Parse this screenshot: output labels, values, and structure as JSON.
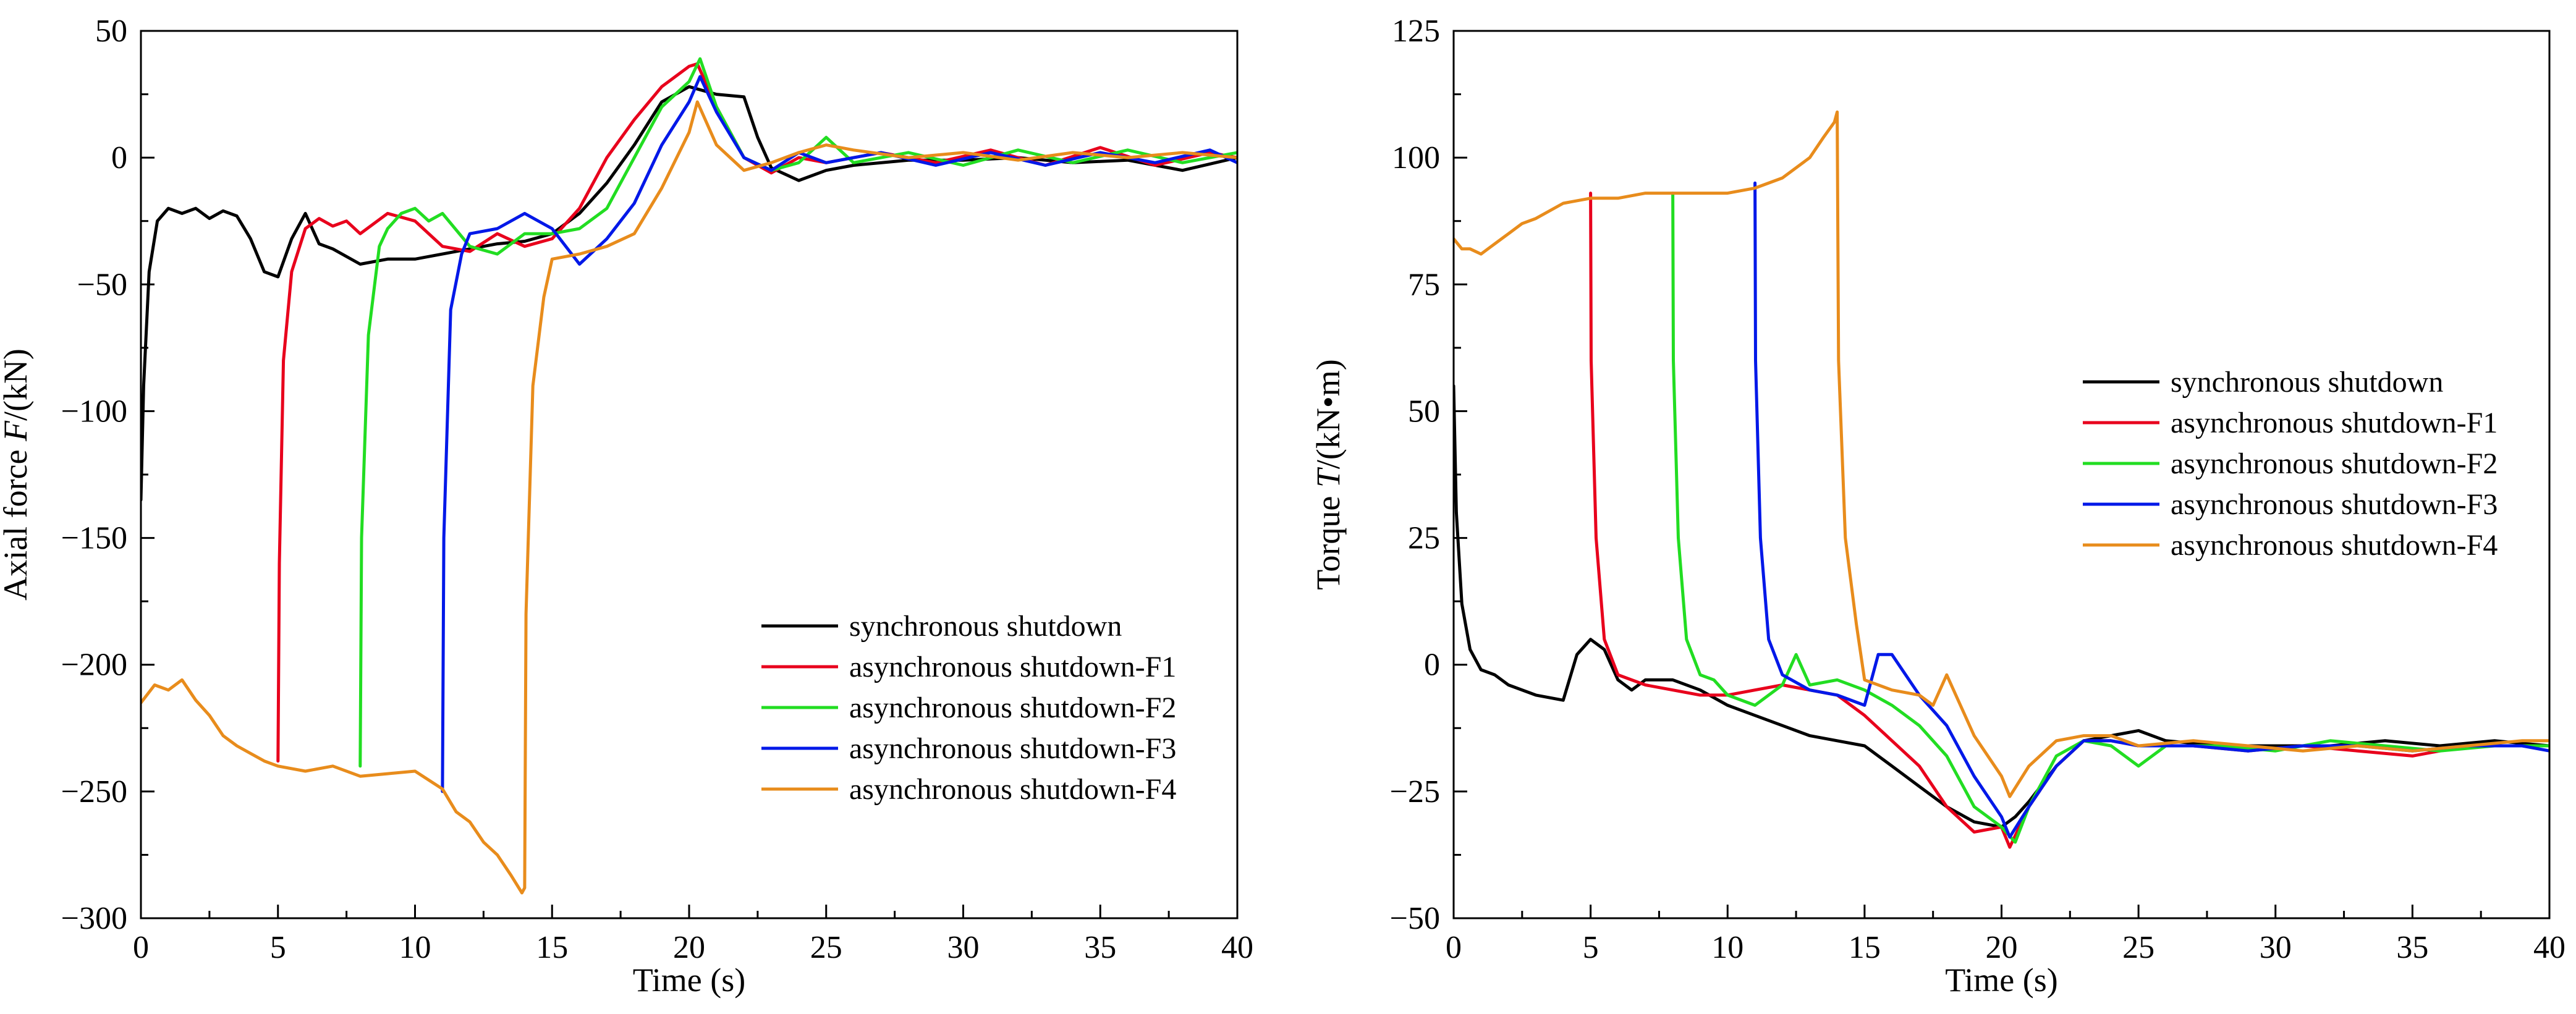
{
  "chart_data": [
    {
      "type": "line",
      "xlabel": "Time (s)",
      "ylabel_prefix": "Axial force ",
      "ylabel_var": "F",
      "ylabel_suffix": "/(kN)",
      "xlim": [
        0,
        40
      ],
      "ylim": [
        -300,
        50
      ],
      "xticks": [
        0,
        5,
        10,
        15,
        20,
        25,
        30,
        35,
        40
      ],
      "xtick_labels": [
        "0",
        "5",
        "10",
        "15",
        "20",
        "25",
        "30",
        "35",
        "40"
      ],
      "yticks": [
        -300,
        -250,
        -200,
        -150,
        -100,
        -50,
        0,
        50
      ],
      "ytick_labels": [
        "−300",
        "−250",
        "−200",
        "−150",
        "−100",
        "−50",
        "0",
        "50"
      ],
      "legend_position": "lower-right",
      "series": [
        {
          "name": "synchronous shutdown",
          "color": "#000000",
          "x": [
            0,
            0.1,
            0.3,
            0.6,
            1,
            1.5,
            2,
            2.5,
            3,
            3.5,
            4,
            4.5,
            5,
            5.5,
            6,
            6.5,
            7,
            8,
            9,
            10,
            11,
            12,
            13,
            14,
            15,
            16,
            17,
            18,
            19,
            20,
            21,
            22,
            22.5,
            23,
            24,
            25,
            26,
            28,
            30,
            32,
            34,
            36,
            38,
            40
          ],
          "y": [
            -135,
            -90,
            -45,
            -25,
            -20,
            -22,
            -20,
            -24,
            -21,
            -23,
            -32,
            -45,
            -47,
            -32,
            -22,
            -34,
            -36,
            -42,
            -40,
            -40,
            -38,
            -36,
            -34,
            -33,
            -30,
            -22,
            -10,
            5,
            22,
            28,
            25,
            24,
            8,
            -4,
            -9,
            -5,
            -3,
            -1,
            -1,
            0,
            -2,
            -1,
            -5,
            0
          ]
        },
        {
          "name": "asynchronous shutdown-F1",
          "color": "#e8001c",
          "x": [
            5,
            5.05,
            5.2,
            5.5,
            6,
            6.5,
            7,
            7.5,
            8,
            9,
            10,
            11,
            12,
            13,
            14,
            15,
            16,
            17,
            18,
            19,
            20,
            20.3,
            21,
            22,
            23,
            24,
            25,
            27,
            29,
            31,
            33,
            35,
            37,
            39,
            40
          ],
          "y": [
            -238,
            -160,
            -80,
            -45,
            -28,
            -24,
            -27,
            -25,
            -30,
            -22,
            -25,
            -35,
            -37,
            -30,
            -35,
            -32,
            -20,
            0,
            15,
            28,
            36,
            37,
            20,
            0,
            -6,
            0,
            -2,
            2,
            -2,
            3,
            -3,
            4,
            -3,
            2,
            0
          ]
        },
        {
          "name": "asynchronous shutdown-F2",
          "color": "#22dd22",
          "x": [
            8,
            8.05,
            8.3,
            8.7,
            9,
            9.5,
            10,
            10.5,
            11,
            12,
            13,
            14,
            15,
            16,
            17,
            18,
            19,
            20,
            20.4,
            21,
            22,
            23,
            24,
            25,
            26,
            28,
            30,
            32,
            34,
            36,
            38,
            40
          ],
          "y": [
            -240,
            -150,
            -70,
            -35,
            -28,
            -22,
            -20,
            -25,
            -22,
            -35,
            -38,
            -30,
            -30,
            -28,
            -20,
            0,
            20,
            30,
            39,
            20,
            0,
            -5,
            -2,
            8,
            -2,
            2,
            -3,
            3,
            -2,
            3,
            -2,
            2
          ]
        },
        {
          "name": "asynchronous shutdown-F3",
          "color": "#0018e8",
          "x": [
            11,
            11.05,
            11.3,
            11.7,
            12,
            13,
            14,
            15,
            16,
            17,
            18,
            19,
            20,
            20.4,
            21,
            22,
            23,
            24,
            25,
            27,
            29,
            31,
            33,
            35,
            37,
            39,
            40
          ],
          "y": [
            -250,
            -150,
            -60,
            -38,
            -30,
            -28,
            -22,
            -28,
            -42,
            -32,
            -18,
            5,
            22,
            32,
            18,
            0,
            -5,
            2,
            -2,
            2,
            -3,
            2,
            -3,
            2,
            -2,
            3,
            -2
          ]
        },
        {
          "name": "asynchronous shutdown-F4",
          "color": "#e88c1c",
          "x": [
            0,
            0.5,
            1,
            1.5,
            2,
            2.5,
            3,
            3.5,
            4,
            4.5,
            5,
            6,
            7,
            8,
            9,
            10,
            11,
            11.5,
            12,
            12.5,
            13,
            13.5,
            13.9,
            14,
            14.05,
            14.3,
            14.7,
            15,
            16,
            17,
            18,
            19,
            20,
            20.3,
            21,
            22,
            23,
            24,
            25,
            26,
            28,
            30,
            32,
            34,
            36,
            38,
            40
          ],
          "y": [
            -215,
            -208,
            -210,
            -206,
            -214,
            -220,
            -228,
            -232,
            -235,
            -238,
            -240,
            -242,
            -240,
            -244,
            -243,
            -242,
            -249,
            -258,
            -262,
            -270,
            -275,
            -283,
            -290,
            -288,
            -180,
            -90,
            -55,
            -40,
            -38,
            -35,
            -30,
            -12,
            10,
            22,
            5,
            -5,
            -2,
            2,
            5,
            3,
            0,
            2,
            -1,
            2,
            0,
            2,
            0
          ]
        }
      ]
    },
    {
      "type": "line",
      "xlabel": "Time (s)",
      "ylabel_prefix": "Torque ",
      "ylabel_var": "T",
      "ylabel_suffix": "/(kN•m)",
      "xlim": [
        0,
        40
      ],
      "ylim": [
        -50,
        125
      ],
      "xticks": [
        0,
        5,
        10,
        15,
        20,
        25,
        30,
        35,
        40
      ],
      "xtick_labels": [
        "0",
        "5",
        "10",
        "15",
        "20",
        "25",
        "30",
        "35",
        "40"
      ],
      "yticks": [
        -50,
        -25,
        0,
        25,
        50,
        75,
        100,
        125
      ],
      "ytick_labels": [
        "−50",
        "−25",
        "0",
        "25",
        "50",
        "75",
        "100",
        "125"
      ],
      "legend_position": "center-right",
      "series": [
        {
          "name": "synchronous shutdown",
          "color": "#000000",
          "x": [
            0,
            0.1,
            0.3,
            0.6,
            1,
            1.5,
            2,
            3,
            4,
            4.5,
            5,
            5.5,
            6,
            6.5,
            7,
            8,
            9,
            10,
            11,
            12,
            13,
            14,
            15,
            16,
            17,
            18,
            19,
            20,
            20.5,
            21,
            22,
            23,
            24,
            25,
            26,
            28,
            30,
            32,
            34,
            36,
            38,
            40
          ],
          "y": [
            55,
            30,
            12,
            3,
            -1,
            -2,
            -4,
            -6,
            -7,
            2,
            5,
            3,
            -3,
            -5,
            -3,
            -3,
            -5,
            -8,
            -10,
            -12,
            -14,
            -15,
            -16,
            -20,
            -24,
            -28,
            -31,
            -32,
            -30,
            -27,
            -20,
            -15,
            -14,
            -13,
            -15,
            -16,
            -16,
            -16,
            -15,
            -16,
            -15,
            -16
          ]
        },
        {
          "name": "asynchronous shutdown-F1",
          "color": "#e8001c",
          "x": [
            5,
            5.02,
            5.2,
            5.5,
            6,
            7,
            8,
            9,
            10,
            11,
            12,
            13,
            14,
            15,
            16,
            17,
            18,
            19,
            20,
            20.3,
            21,
            22,
            23,
            24,
            25,
            27,
            29,
            31,
            33,
            35,
            37,
            39,
            40
          ],
          "y": [
            93,
            60,
            25,
            5,
            -2,
            -4,
            -5,
            -6,
            -6,
            -5,
            -4,
            -5,
            -6,
            -10,
            -15,
            -20,
            -28,
            -33,
            -32,
            -36,
            -28,
            -20,
            -15,
            -15,
            -16,
            -16,
            -17,
            -16,
            -17,
            -18,
            -16,
            -16,
            -16
          ]
        },
        {
          "name": "asynchronous shutdown-F2",
          "color": "#22dd22",
          "x": [
            8,
            8.02,
            8.2,
            8.5,
            9,
            9.5,
            10,
            11,
            12,
            12.5,
            13,
            14,
            15,
            16,
            17,
            18,
            19,
            20,
            20.5,
            21,
            22,
            23,
            24,
            25,
            26,
            28,
            30,
            32,
            34,
            36,
            38,
            40
          ],
          "y": [
            93,
            60,
            25,
            5,
            -2,
            -3,
            -6,
            -8,
            -4,
            2,
            -4,
            -3,
            -5,
            -8,
            -12,
            -18,
            -28,
            -32,
            -35,
            -28,
            -18,
            -15,
            -16,
            -20,
            -16,
            -16,
            -17,
            -15,
            -16,
            -17,
            -16,
            -16
          ]
        },
        {
          "name": "asynchronous shutdown-F3",
          "color": "#0018e8",
          "x": [
            11,
            11.02,
            11.2,
            11.5,
            12,
            13,
            14,
            15,
            15.5,
            16,
            17,
            18,
            19,
            20,
            20.3,
            21,
            22,
            23,
            24,
            25,
            27,
            29,
            31,
            33,
            35,
            37,
            39,
            40
          ],
          "y": [
            95,
            60,
            25,
            5,
            -2,
            -5,
            -6,
            -8,
            2,
            2,
            -6,
            -12,
            -22,
            -30,
            -34,
            -28,
            -20,
            -15,
            -15,
            -16,
            -16,
            -17,
            -16,
            -16,
            -17,
            -16,
            -16,
            -17
          ]
        },
        {
          "name": "asynchronous shutdown-F4",
          "color": "#e88c1c",
          "x": [
            0,
            0.3,
            0.6,
            1,
            1.5,
            2,
            2.5,
            3,
            4,
            5,
            6,
            7,
            8,
            9,
            10,
            11,
            12,
            13,
            13.5,
            13.9,
            14,
            14.05,
            14.3,
            14.7,
            15,
            16,
            17,
            17.5,
            18,
            18.5,
            19,
            20,
            20.3,
            21,
            22,
            23,
            24,
            25,
            27,
            29,
            31,
            33,
            35,
            37,
            39,
            40
          ],
          "y": [
            84,
            82,
            82,
            81,
            83,
            85,
            87,
            88,
            91,
            92,
            92,
            93,
            93,
            93,
            93,
            94,
            96,
            100,
            104,
            107,
            109,
            60,
            25,
            8,
            -3,
            -5,
            -6,
            -8,
            -2,
            -8,
            -14,
            -22,
            -26,
            -20,
            -15,
            -14,
            -14,
            -16,
            -15,
            -16,
            -17,
            -16,
            -17,
            -16,
            -15,
            -15
          ]
        }
      ]
    }
  ]
}
